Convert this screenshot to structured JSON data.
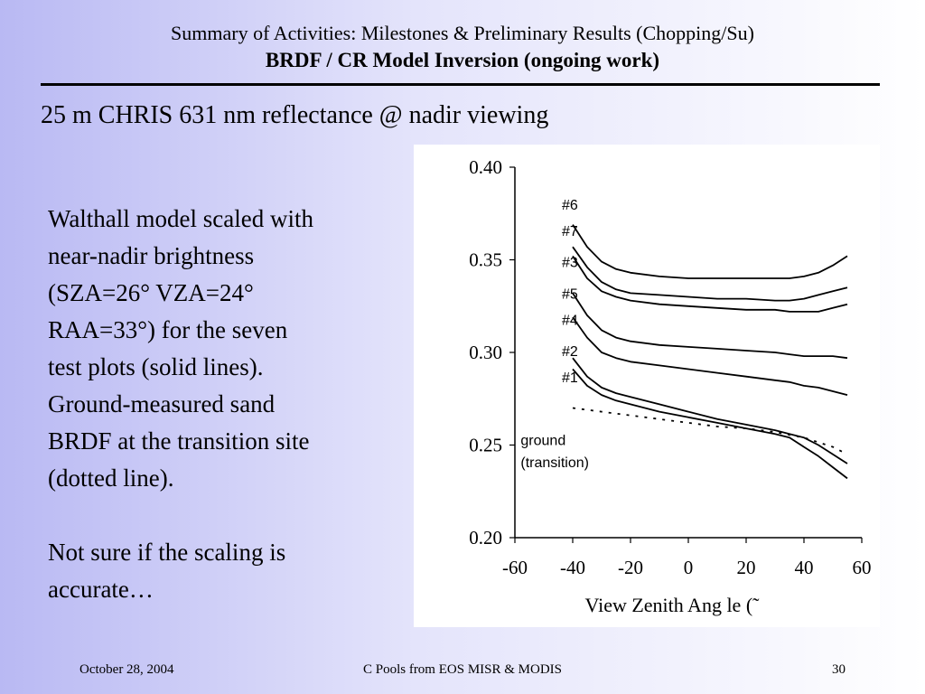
{
  "header": {
    "line1": "Summary of Activities: Milestones & Preliminary Results (Chopping/Su)",
    "line2": "BRDF / CR Model Inversion (ongoing work)"
  },
  "subtitle": "25 m CHRIS 631 nm reflectance @ nadir viewing",
  "body": {
    "lines": [
      "Walthall model scaled with",
      "near-nadir brightness",
      "(SZA=26° VZA=24°",
      "RAA=33°) for the seven",
      "test plots (solid lines).",
      "Ground-measured sand",
      "BRDF at the transition site",
      "(dotted line)."
    ],
    "lines2": [
      "Not sure if the scaling is",
      "accurate…"
    ]
  },
  "footer": {
    "date": "October 28, 2004",
    "center": "C Pools from EOS MISR & MODIS",
    "page": "30"
  },
  "chart_data": {
    "type": "line",
    "title": "",
    "xlabel": "View Zenith Ang le (˜",
    "ylabel": "",
    "xlim": [
      -60,
      60
    ],
    "ylim": [
      0.2,
      0.4
    ],
    "xticks": [
      "-60",
      "-40",
      "-20",
      "0",
      "20",
      "40",
      "60"
    ],
    "xtick_values": [
      -60,
      -40,
      -20,
      0,
      20,
      40,
      60
    ],
    "yticks": [
      "0.20",
      "0.25",
      "0.30",
      "0.35",
      "0.40"
    ],
    "ytick_values": [
      0.2,
      0.25,
      0.3,
      0.35,
      0.4
    ],
    "grid": false,
    "series": [
      {
        "name": "#6",
        "style": "solid",
        "x": [
          -40,
          -35,
          -30,
          -25,
          -20,
          -10,
          0,
          10,
          20,
          30,
          35,
          40,
          45,
          50,
          55
        ],
        "y": [
          0.369,
          0.357,
          0.349,
          0.345,
          0.343,
          0.341,
          0.34,
          0.34,
          0.34,
          0.34,
          0.34,
          0.341,
          0.343,
          0.347,
          0.352
        ]
      },
      {
        "name": "#7",
        "style": "solid",
        "x": [
          -40,
          -35,
          -30,
          -25,
          -20,
          -10,
          0,
          10,
          20,
          30,
          35,
          40,
          45,
          50,
          55
        ],
        "y": [
          0.357,
          0.346,
          0.338,
          0.334,
          0.332,
          0.331,
          0.33,
          0.329,
          0.329,
          0.328,
          0.328,
          0.329,
          0.331,
          0.333,
          0.335
        ]
      },
      {
        "name": "#3",
        "style": "solid",
        "x": [
          -40,
          -35,
          -30,
          -25,
          -20,
          -10,
          0,
          10,
          20,
          30,
          35,
          40,
          45,
          50,
          55
        ],
        "y": [
          0.352,
          0.34,
          0.333,
          0.33,
          0.328,
          0.326,
          0.325,
          0.324,
          0.323,
          0.323,
          0.322,
          0.322,
          0.322,
          0.324,
          0.326
        ]
      },
      {
        "name": "#5",
        "style": "solid",
        "x": [
          -40,
          -35,
          -30,
          -25,
          -20,
          -10,
          0,
          10,
          20,
          30,
          35,
          40,
          45,
          50,
          55
        ],
        "y": [
          0.332,
          0.32,
          0.312,
          0.308,
          0.306,
          0.304,
          0.303,
          0.302,
          0.301,
          0.3,
          0.299,
          0.298,
          0.298,
          0.298,
          0.297
        ]
      },
      {
        "name": "#4",
        "style": "solid",
        "x": [
          -40,
          -35,
          -30,
          -25,
          -20,
          -10,
          0,
          10,
          20,
          30,
          35,
          40,
          45,
          50,
          55
        ],
        "y": [
          0.319,
          0.308,
          0.3,
          0.297,
          0.295,
          0.293,
          0.291,
          0.289,
          0.287,
          0.285,
          0.284,
          0.282,
          0.281,
          0.279,
          0.277
        ]
      },
      {
        "name": "#2",
        "style": "solid",
        "x": [
          -40,
          -35,
          -30,
          -25,
          -20,
          -10,
          0,
          10,
          20,
          30,
          35,
          40,
          45,
          50,
          55
        ],
        "y": [
          0.297,
          0.287,
          0.281,
          0.278,
          0.276,
          0.272,
          0.268,
          0.264,
          0.261,
          0.258,
          0.256,
          0.254,
          0.25,
          0.245,
          0.24
        ]
      },
      {
        "name": "#1",
        "style": "solid",
        "x": [
          -40,
          -35,
          -30,
          -25,
          -20,
          -10,
          0,
          10,
          20,
          30,
          35,
          40,
          45,
          50,
          55
        ],
        "y": [
          0.291,
          0.282,
          0.277,
          0.274,
          0.272,
          0.268,
          0.265,
          0.262,
          0.259,
          0.256,
          0.254,
          0.249,
          0.244,
          0.238,
          0.232
        ]
      },
      {
        "name": "ground (transition)",
        "style": "dotted",
        "x": [
          -40,
          -30,
          -20,
          -10,
          0,
          10,
          20,
          30,
          40,
          50,
          55
        ],
        "y": [
          0.27,
          0.268,
          0.266,
          0.264,
          0.262,
          0.26,
          0.259,
          0.257,
          0.254,
          0.249,
          0.245
        ]
      }
    ],
    "annotations": [
      {
        "text": "#6",
        "x": -40,
        "y": 0.377
      },
      {
        "text": "#7",
        "x": -40,
        "y": 0.363
      },
      {
        "text": "#3",
        "x": -40,
        "y": 0.346
      },
      {
        "text": "#5",
        "x": -40,
        "y": 0.329
      },
      {
        "text": "#4",
        "x": -40,
        "y": 0.315
      },
      {
        "text": "#2",
        "x": -40,
        "y": 0.298
      },
      {
        "text": "#1",
        "x": -40,
        "y": 0.284
      },
      {
        "text": "ground",
        "x": -58,
        "y": 0.25
      },
      {
        "text": "(transition)",
        "x": -58,
        "y": 0.238
      }
    ]
  }
}
